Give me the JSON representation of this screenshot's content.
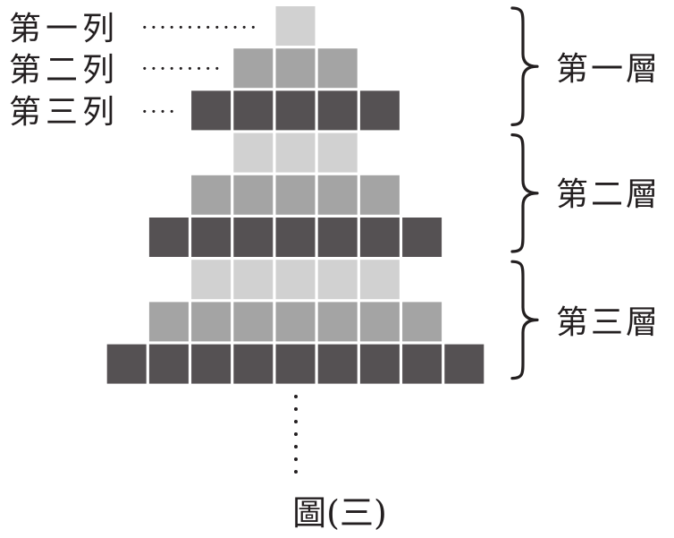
{
  "figure": {
    "caption": "圖(三)",
    "row_labels": [
      {
        "label": "第一列",
        "leader": "·············"
      },
      {
        "label": "第二列",
        "leader": "·········"
      },
      {
        "label": "第三列",
        "leader": "····"
      }
    ],
    "layers": [
      {
        "label": "第一層",
        "rows": [
          {
            "count": 1,
            "shade": "light"
          },
          {
            "count": 3,
            "shade": "medium"
          },
          {
            "count": 5,
            "shade": "dark"
          }
        ]
      },
      {
        "label": "第二層",
        "rows": [
          {
            "count": 3,
            "shade": "light"
          },
          {
            "count": 5,
            "shade": "medium"
          },
          {
            "count": 7,
            "shade": "dark"
          }
        ]
      },
      {
        "label": "第三層",
        "rows": [
          {
            "count": 5,
            "shade": "light"
          },
          {
            "count": 7,
            "shade": "medium"
          },
          {
            "count": 9,
            "shade": "dark"
          }
        ]
      }
    ],
    "colors": {
      "light": "#d1d1d1",
      "medium": "#a4a4a4",
      "dark": "#555153",
      "ink": "#231f20",
      "background": "#ffffff"
    }
  }
}
